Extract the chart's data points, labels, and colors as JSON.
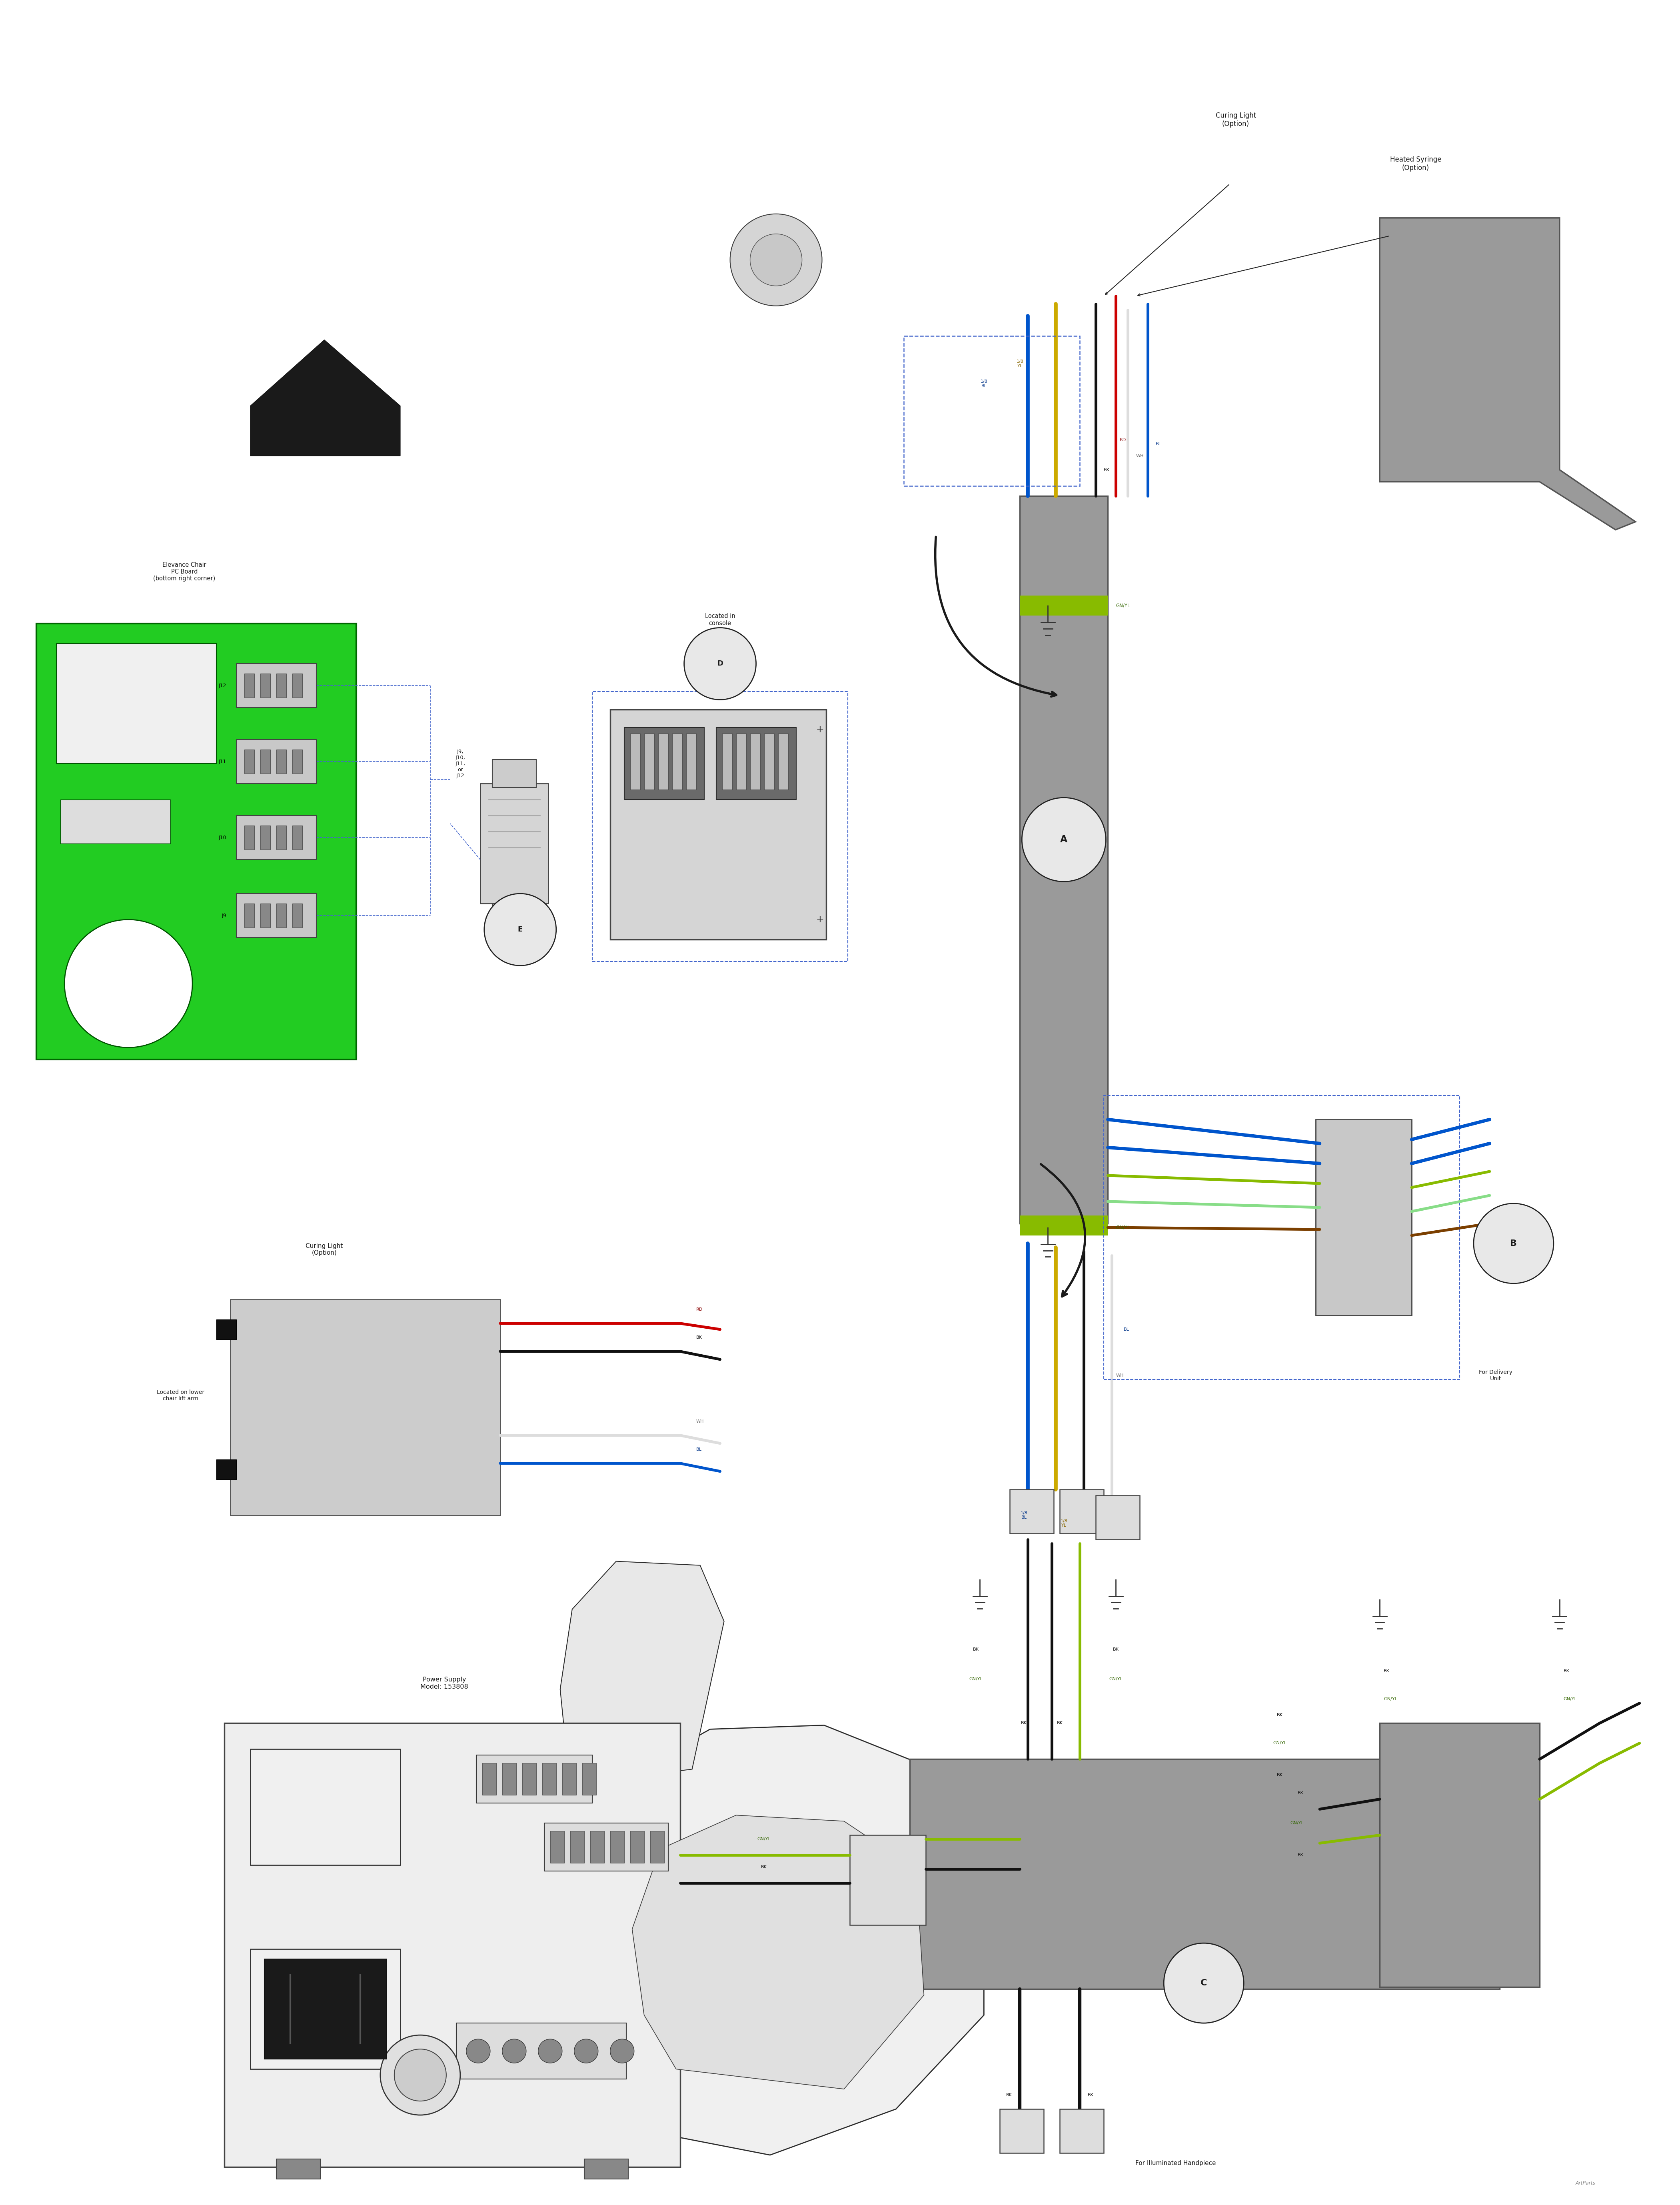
{
  "bg_color": "#ffffff",
  "text_color": "#1a1a1a",
  "fig_width": 42.01,
  "fig_height": 55.13,
  "colors": {
    "green_box": "#22cc22",
    "gray_harness": "#9a9a9a",
    "dark_gray": "#555555",
    "wire_black": "#111111",
    "wire_red": "#cc0000",
    "wire_blue": "#0055cc",
    "wire_yellow": "#ccaa00",
    "wire_white": "#dddddd",
    "wire_green_yellow": "#88bb00",
    "wire_brown": "#7B3F00",
    "circle_label_bg": "#e8e8e8",
    "dashed_line": "#4466cc",
    "outline": "#222222",
    "light_gray": "#cccccc",
    "med_gray": "#aaaaaa",
    "connector_dark": "#666666",
    "ps_body": "#eeeeee"
  },
  "labels": {
    "curing_light_top": "Curing Light\n(Option)",
    "heated_syringe": "Heated Syringe\n(Option)",
    "pc_board": "Elevance Chair\nPC Board\n(bottom right corner)",
    "j_label": "J9,\nJ10,\nJ11,\nor\nJ12",
    "in_console": "Located in\nconsole",
    "curing_light_left": "Curing Light\n(Option)",
    "lower_chair": "Located on lower\nchair lift arm",
    "power_supply": "Power Supply\nModel: 153808",
    "for_delivery": "For Delivery\nUnit",
    "for_handpiece": "For Illuminated Handpiece",
    "artparts": "ArtParts"
  }
}
